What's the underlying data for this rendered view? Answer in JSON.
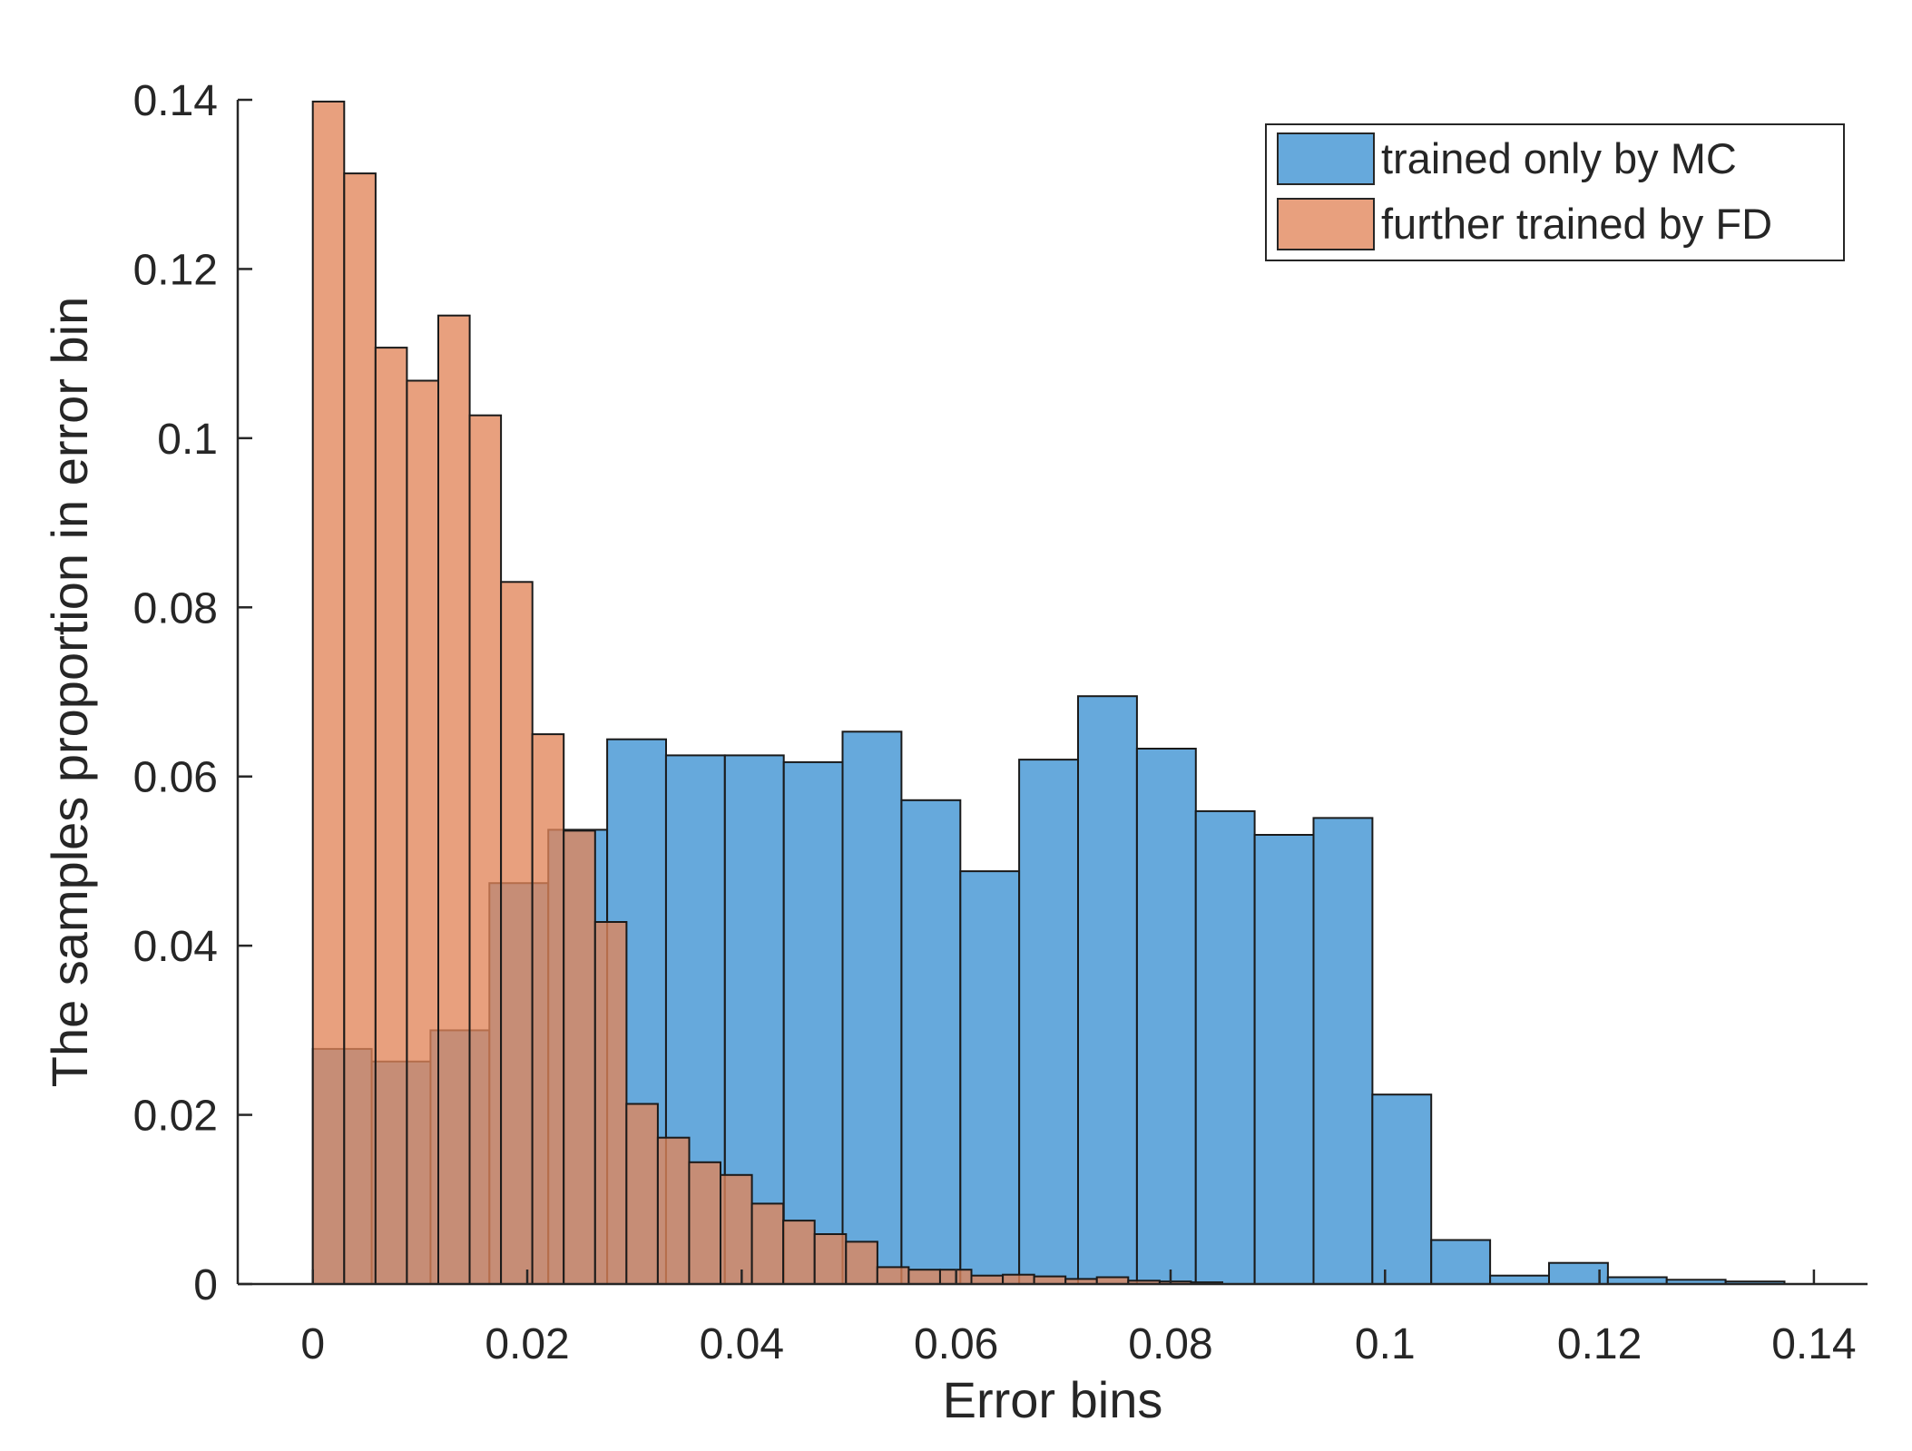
{
  "chart_data": {
    "type": "bar",
    "subtype": "overlapping-histogram",
    "title": "",
    "xlabel": "Error bins",
    "ylabel": "The samples proportion in error bin",
    "xlim": [
      -0.007,
      0.145
    ],
    "ylim": [
      0,
      0.14
    ],
    "xticks": [
      0,
      0.02,
      0.04,
      0.06,
      0.08,
      0.1,
      0.12,
      0.14
    ],
    "xtick_labels": [
      "0",
      "0.02",
      "0.04",
      "0.06",
      "0.08",
      "0.1",
      "0.12",
      "0.14"
    ],
    "yticks": [
      0,
      0.02,
      0.04,
      0.06,
      0.08,
      0.1,
      0.12,
      0.14
    ],
    "ytick_labels": [
      "0",
      "0.02",
      "0.04",
      "0.06",
      "0.08",
      "0.1",
      "0.12",
      "0.14"
    ],
    "grid": false,
    "legend_position": "top-right",
    "series": [
      {
        "name": "trained only by MC",
        "color": "#4b9ad6",
        "opacity": 0.85,
        "bin_start": 0,
        "bin_width": 0.00549,
        "values": [
          0.0278,
          0.0263,
          0.03,
          0.0474,
          0.0537,
          0.0644,
          0.0625,
          0.0625,
          0.0617,
          0.0653,
          0.0572,
          0.0488,
          0.062,
          0.0695,
          0.0633,
          0.0559,
          0.0531,
          0.0551,
          0.0224,
          0.0052,
          0.001,
          0.0025,
          0.0008,
          0.0005,
          0.0003
        ]
      },
      {
        "name": "further trained by FD",
        "color": "#e2855a",
        "opacity": 0.78,
        "bin_start": 0,
        "bin_width": 0.002925,
        "values": [
          0.1398,
          0.1313,
          0.1107,
          0.1068,
          0.1145,
          0.1027,
          0.083,
          0.065,
          0.0536,
          0.0428,
          0.0213,
          0.0173,
          0.0144,
          0.0129,
          0.0095,
          0.0075,
          0.0059,
          0.005,
          0.002,
          0.0017,
          0.0017,
          0.001,
          0.0011,
          0.0009,
          0.0006,
          0.0008,
          0.0004,
          0.0003,
          0.0002
        ]
      }
    ]
  }
}
